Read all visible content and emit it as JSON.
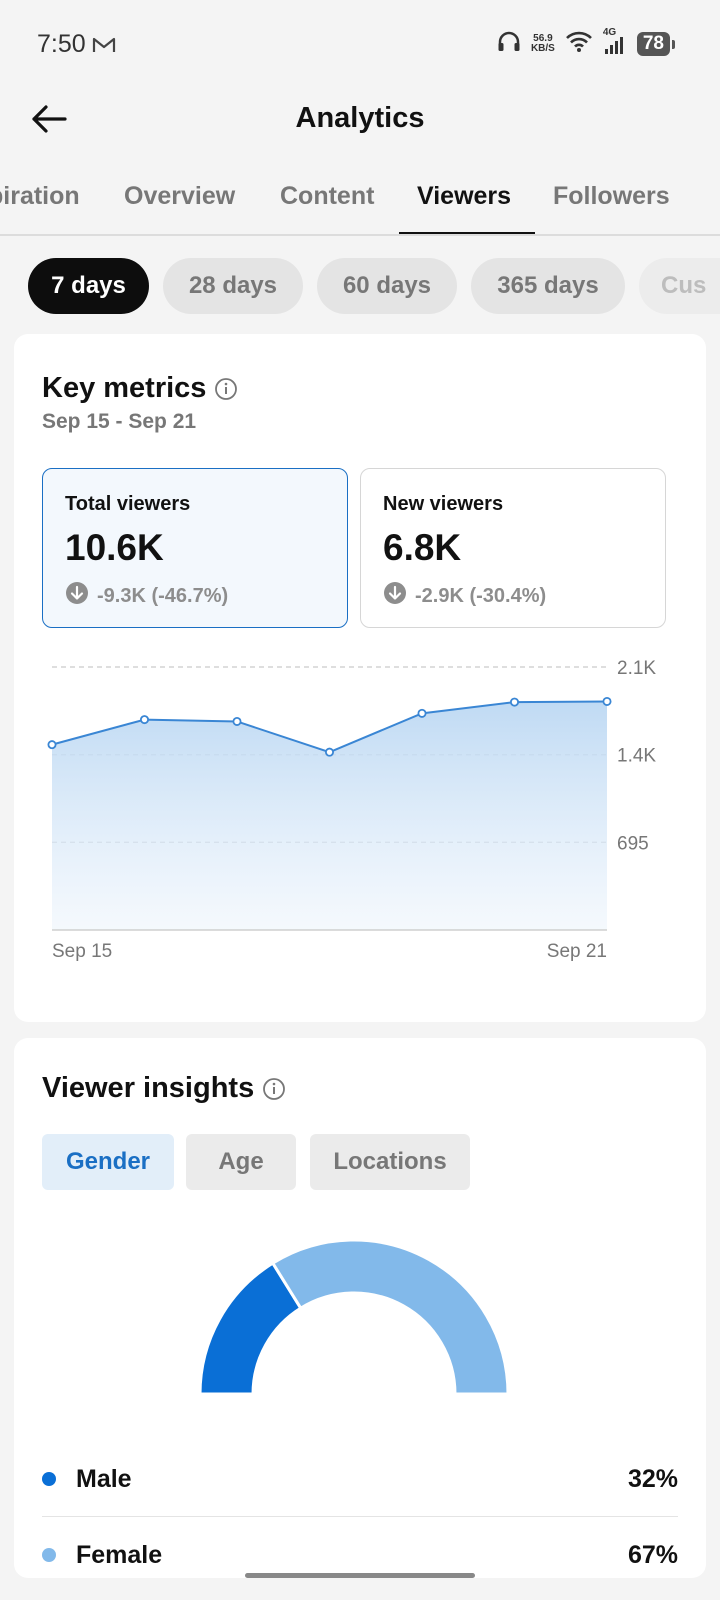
{
  "status_bar": {
    "time": "7:50",
    "net_speed_value": "56.9",
    "net_speed_unit": "KB/S",
    "network": "4G",
    "battery": "78",
    "icons": [
      "mail-icon",
      "headphones-icon",
      "wifi-icon",
      "signal-icon",
      "battery-icon"
    ]
  },
  "header": {
    "title": "Analytics",
    "back_icon": "arrow-left-icon"
  },
  "tabs": [
    {
      "label": "piration"
    },
    {
      "label": "Overview"
    },
    {
      "label": "Content"
    },
    {
      "label": "Viewers",
      "active": true
    },
    {
      "label": "Followers"
    }
  ],
  "periods": [
    {
      "label": "7 days",
      "active": true
    },
    {
      "label": "28 days"
    },
    {
      "label": "60 days"
    },
    {
      "label": "365 days"
    },
    {
      "label": "Cus"
    }
  ],
  "key_metrics": {
    "title": "Key metrics",
    "date_range": "Sep 15 - Sep 21",
    "metrics": [
      {
        "label": "Total viewers",
        "value": "10.6K",
        "change": "-9.3K (-46.7%)",
        "selected": true
      },
      {
        "label": "New viewers",
        "value": "6.8K",
        "change": "-2.9K (-30.4%)",
        "selected": false
      }
    ]
  },
  "chart_data": {
    "type": "area",
    "x": [
      "Sep 15",
      "Sep 16",
      "Sep 17",
      "Sep 18",
      "Sep 19",
      "Sep 20",
      "Sep 21"
    ],
    "x_tick_labels": [
      "Sep 15",
      "Sep 21"
    ],
    "y_tick_labels": [
      "2.1K",
      "1.4K",
      "695"
    ],
    "series": [
      {
        "values": [
          1480,
          1680,
          1665,
          1420,
          1730,
          1820,
          1825
        ]
      }
    ],
    "ylim": [
      0,
      2100
    ],
    "grid": true,
    "color": "#3a86d4"
  },
  "insights": {
    "title": "Viewer insights",
    "segments": [
      {
        "label": "Gender",
        "active": true
      },
      {
        "label": "Age"
      },
      {
        "label": "Locations"
      }
    ],
    "gender": [
      {
        "name": "Male",
        "pct": "32%",
        "value": 32,
        "color": "#0a6fd6"
      },
      {
        "name": "Female",
        "pct": "67%",
        "value": 67,
        "color": "#82b9ea"
      }
    ]
  }
}
